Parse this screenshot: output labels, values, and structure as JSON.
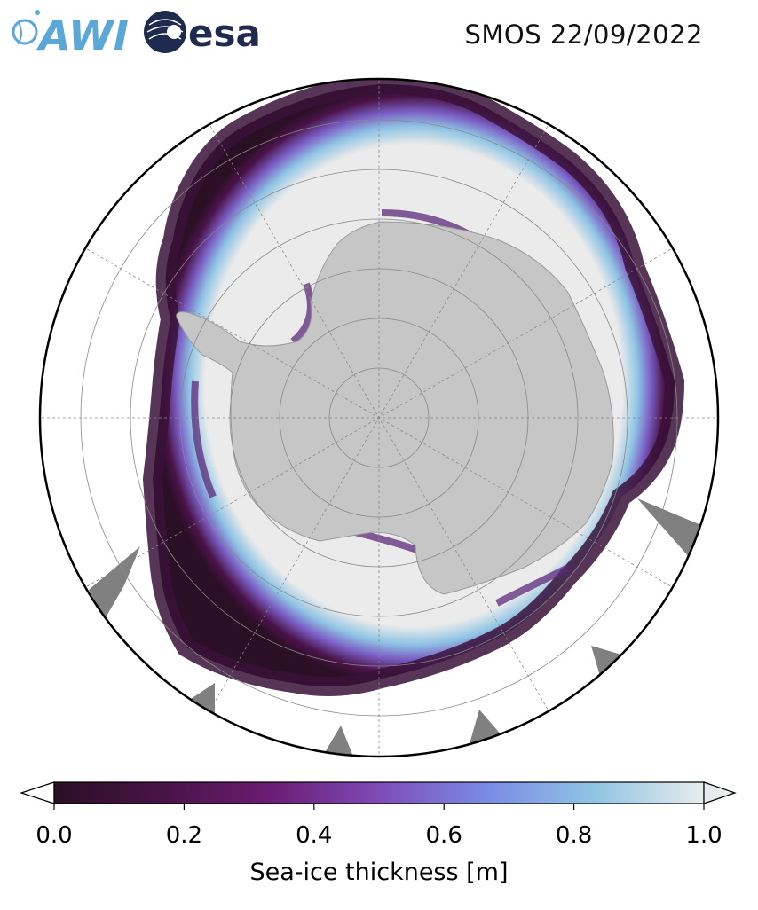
{
  "header": {
    "title": "SMOS 22/09/2022",
    "logo_awi_text": "AWI",
    "logo_esa_text": "esa"
  },
  "map": {
    "projection": "south-polar-stereographic",
    "colors": {
      "land": "#c6c6c6",
      "ocean": "#ffffff",
      "no_data": "#808080",
      "thick_ice": "#ebebeb",
      "border": "#000000",
      "grid": "#888888"
    }
  },
  "colorbar": {
    "label": "Sea-ice thickness [m]",
    "min": 0.0,
    "max": 1.0,
    "extend": "both",
    "ticks": [
      "0.0",
      "0.2",
      "0.4",
      "0.6",
      "0.8",
      "1.0"
    ],
    "colormap": [
      "#2a0f25",
      "#4a1348",
      "#6a1c72",
      "#7e4bb7",
      "#7a8de6",
      "#8fc4e4",
      "#e8ecec"
    ]
  }
}
